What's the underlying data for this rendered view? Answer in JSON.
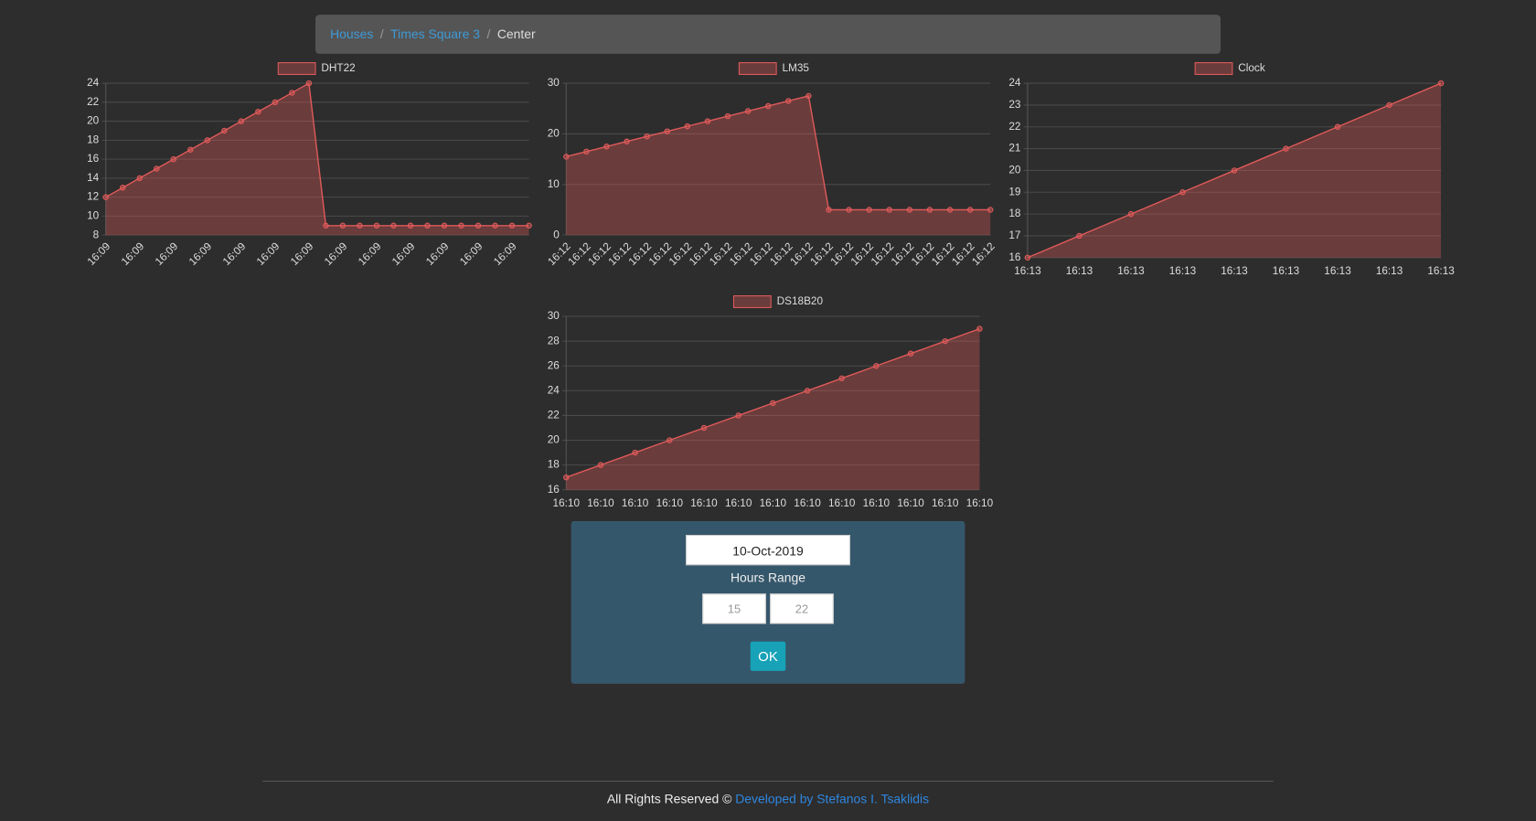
{
  "breadcrumb": [
    "Houses",
    "Times Square 3",
    "Center"
  ],
  "chart_data": [
    {
      "type": "line",
      "categories": [
        "16:09",
        "16:09",
        "16:09",
        "16:09",
        "16:09",
        "16:09",
        "16:09",
        "16:09",
        "16:09",
        "16:09",
        "16:09",
        "16:09",
        "16:09",
        "16:09",
        "16:09",
        "16:09",
        "16:09",
        "16:09",
        "16:09",
        "16:09",
        "16:09",
        "16:09",
        "16:09",
        "16:09",
        "16:09",
        "16:09"
      ],
      "series": [
        {
          "name": "DHT22",
          "color": "#e05a5a",
          "values": [
            12,
            13,
            14,
            15,
            16,
            17,
            18,
            19,
            20,
            21,
            22,
            23,
            24,
            9,
            9,
            9,
            9,
            9,
            9,
            9,
            9,
            9,
            9,
            9,
            9,
            9
          ]
        }
      ],
      "ylim": [
        8,
        24
      ],
      "yticks": [
        8,
        10,
        12,
        14,
        16,
        18,
        20,
        22,
        24
      ],
      "grid": true
    },
    {
      "type": "line",
      "categories": [
        "16:12",
        "16:12",
        "16:12",
        "16:12",
        "16:12",
        "16:12",
        "16:12",
        "16:12",
        "16:12",
        "16:12",
        "16:12",
        "16:12",
        "16:12",
        "16:12",
        "16:12",
        "16:12",
        "16:12",
        "16:12",
        "16:12",
        "16:12",
        "16:12",
        "16:12"
      ],
      "series": [
        {
          "name": "LM35",
          "color": "#e05a5a",
          "values": [
            15.5,
            16.5,
            17.5,
            18.5,
            19.5,
            20.5,
            21.5,
            22.5,
            23.5,
            24.5,
            25.5,
            26.5,
            27.5,
            5,
            5,
            5,
            5,
            5,
            5,
            5,
            5,
            5
          ]
        }
      ],
      "ylim": [
        0,
        30
      ],
      "yticks": [
        0,
        10,
        20,
        30
      ],
      "grid": true
    },
    {
      "type": "line",
      "categories": [
        "16:13",
        "16:13",
        "16:13",
        "16:13",
        "16:13",
        "16:13",
        "16:13",
        "16:13",
        "16:13"
      ],
      "series": [
        {
          "name": "Clock",
          "color": "#e05a5a",
          "values": [
            16,
            17,
            18,
            19,
            20,
            21,
            22,
            23,
            24
          ]
        }
      ],
      "ylim": [
        16,
        24
      ],
      "yticks": [
        16,
        17,
        18,
        19,
        20,
        21,
        22,
        23,
        24
      ],
      "grid": true
    },
    {
      "type": "line",
      "categories": [
        "16:10",
        "16:10",
        "16:10",
        "16:10",
        "16:10",
        "16:10",
        "16:10",
        "16:10",
        "16:10",
        "16:10",
        "16:10",
        "16:10",
        "16:10"
      ],
      "series": [
        {
          "name": "DS18B20",
          "color": "#e05a5a",
          "values": [
            17,
            18,
            19,
            20,
            21,
            22,
            23,
            24,
            25,
            26,
            27,
            28,
            29
          ]
        }
      ],
      "ylim": [
        16,
        30
      ],
      "yticks": [
        16,
        18,
        20,
        22,
        24,
        26,
        28,
        30
      ],
      "grid": true
    }
  ],
  "form": {
    "date": "10-Oct-2019",
    "label": "Hours Range",
    "from_placeholder": "15",
    "to_placeholder": "22",
    "button": "OK"
  },
  "footer": {
    "text": "All Rights Reserved ©",
    "link": "Developed by Stefanos I. Tsaklidis"
  }
}
